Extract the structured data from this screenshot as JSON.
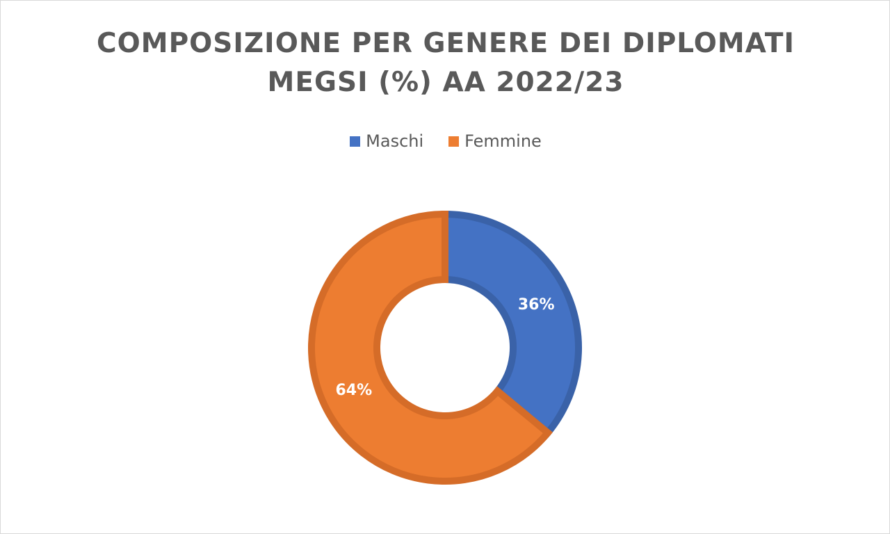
{
  "chart_data": {
    "type": "pie",
    "style": "donut",
    "title_lines": [
      "COMPOSIZIONE PER GENERE DEI DIPLOMATI",
      "MEGSI (%) AA 2022/23"
    ],
    "legend_position": "top",
    "series": [
      {
        "name": "Maschi",
        "value": 36,
        "label": "36%",
        "color": "#4472c4",
        "border": "#3a62a8"
      },
      {
        "name": "Femmine",
        "value": 64,
        "label": "64%",
        "color": "#ed7d31",
        "border": "#d56c28"
      }
    ]
  }
}
